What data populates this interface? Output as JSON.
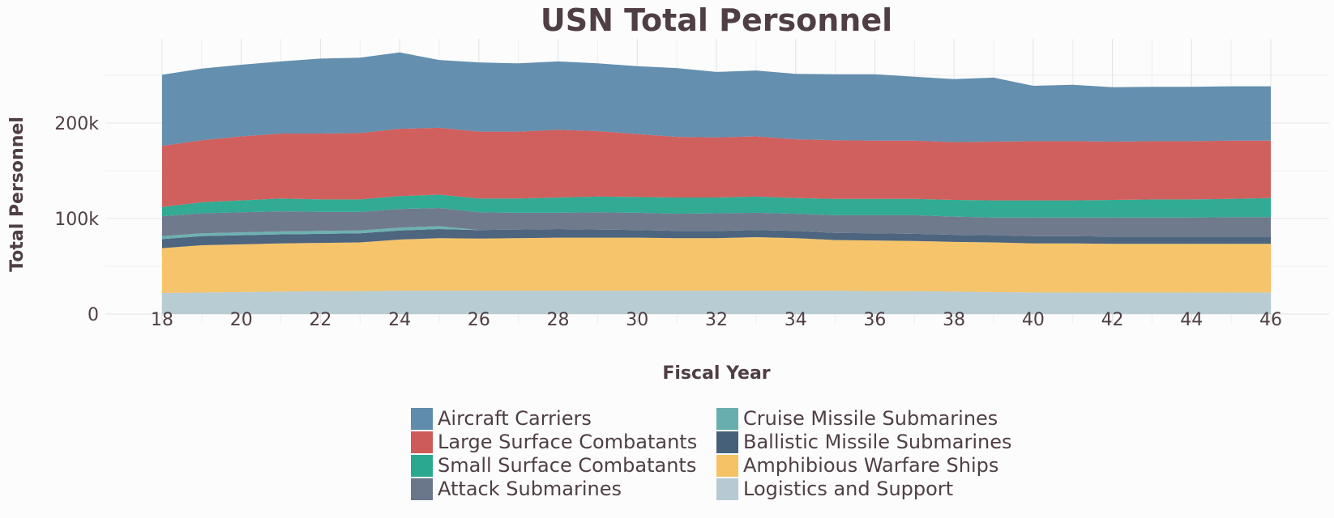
{
  "chart_data": {
    "type": "area",
    "stacked": true,
    "title": "USN  Total Personnel",
    "xlabel": "Fiscal Year",
    "ylabel": "Total Personnel",
    "x": [
      18,
      19,
      20,
      21,
      22,
      23,
      24,
      25,
      26,
      27,
      28,
      29,
      30,
      31,
      32,
      33,
      34,
      35,
      36,
      37,
      38,
      39,
      40,
      41,
      42,
      43,
      44,
      45,
      46
    ],
    "xlim": [
      18,
      46
    ],
    "ylim": [
      0,
      280000
    ],
    "x_ticks": [
      "18",
      "20",
      "22",
      "24",
      "26",
      "28",
      "30",
      "32",
      "34",
      "36",
      "38",
      "40",
      "42",
      "44",
      "46"
    ],
    "y_ticks": [
      "0",
      "100k",
      "200k"
    ],
    "grid": true,
    "legend": "bottom",
    "series": [
      {
        "name": "Logistics and Support",
        "color": "#b6cad3",
        "values": [
          22000,
          22500,
          23000,
          23500,
          24000,
          24000,
          24500,
          24500,
          24500,
          24500,
          24500,
          24500,
          24500,
          24500,
          24500,
          24500,
          24500,
          24500,
          24000,
          24000,
          23500,
          23000,
          22500,
          22500,
          22500,
          22500,
          22500,
          22500,
          22500
        ]
      },
      {
        "name": "Amphibious Warfare Ships",
        "color": "#f5c266",
        "values": [
          47000,
          49500,
          50000,
          50500,
          50500,
          51000,
          53500,
          55000,
          54500,
          55000,
          55500,
          55500,
          55500,
          55000,
          55000,
          56000,
          55000,
          53000,
          53000,
          52500,
          52000,
          52000,
          51500,
          51500,
          51000,
          51000,
          51000,
          51000,
          51000
        ]
      },
      {
        "name": "Ballistic Missile Submarines",
        "color": "#47607a",
        "values": [
          9500,
          9500,
          9500,
          9500,
          9500,
          9500,
          9500,
          9500,
          9000,
          9000,
          9000,
          8500,
          8000,
          7500,
          7500,
          7500,
          7500,
          7500,
          7500,
          7500,
          7500,
          7500,
          7500,
          7500,
          7500,
          7500,
          7500,
          7500,
          7500
        ]
      },
      {
        "name": "Cruise Missile Submarines",
        "color": "#68aeae",
        "values": [
          3000,
          3000,
          3000,
          3000,
          3000,
          3000,
          3000,
          3000,
          0,
          0,
          0,
          0,
          0,
          0,
          0,
          0,
          0,
          0,
          0,
          0,
          0,
          0,
          0,
          0,
          0,
          0,
          0,
          0,
          0
        ]
      },
      {
        "name": "Attack Submarines",
        "color": "#6a7689",
        "values": [
          21000,
          21000,
          21000,
          21000,
          20000,
          19500,
          19500,
          19000,
          18500,
          17500,
          17000,
          18000,
          18000,
          18000,
          18500,
          18000,
          18000,
          18500,
          19000,
          19500,
          19000,
          18500,
          19500,
          19500,
          20000,
          20000,
          20000,
          20500,
          20500
        ]
      },
      {
        "name": "Small Surface Combatants",
        "color": "#2aa890",
        "values": [
          9500,
          11500,
          12500,
          13500,
          13000,
          13000,
          13500,
          14000,
          14500,
          15000,
          16000,
          16500,
          16500,
          17000,
          16500,
          17000,
          16500,
          17000,
          17000,
          17000,
          17500,
          18000,
          18000,
          18000,
          18500,
          19000,
          19000,
          19000,
          20000
        ]
      },
      {
        "name": "Large Surface Combatants",
        "color": "#cd5b59",
        "values": [
          64000,
          65000,
          67000,
          68000,
          69000,
          69500,
          70500,
          70000,
          70000,
          70000,
          71000,
          68500,
          66000,
          63500,
          63000,
          63000,
          61500,
          61500,
          61000,
          61000,
          60500,
          61500,
          62000,
          62000,
          61000,
          61000,
          61000,
          61000,
          60000
        ]
      },
      {
        "name": "Aircraft Carriers",
        "color": "#5f8bac",
        "values": [
          74500,
          75000,
          75000,
          75500,
          78500,
          79000,
          80000,
          71000,
          72500,
          71500,
          71500,
          71000,
          71000,
          72000,
          68500,
          69000,
          68500,
          69000,
          69500,
          67000,
          66000,
          67000,
          58000,
          59000,
          57000,
          57000,
          57000,
          57000,
          57000
        ]
      }
    ],
    "legend_order": [
      "Aircraft Carriers",
      "Cruise Missile Submarines",
      "Large Surface Combatants",
      "Ballistic Missile Submarines",
      "Small Surface Combatants",
      "Amphibious Warfare Ships",
      "Attack Submarines",
      "Logistics and Support"
    ]
  }
}
